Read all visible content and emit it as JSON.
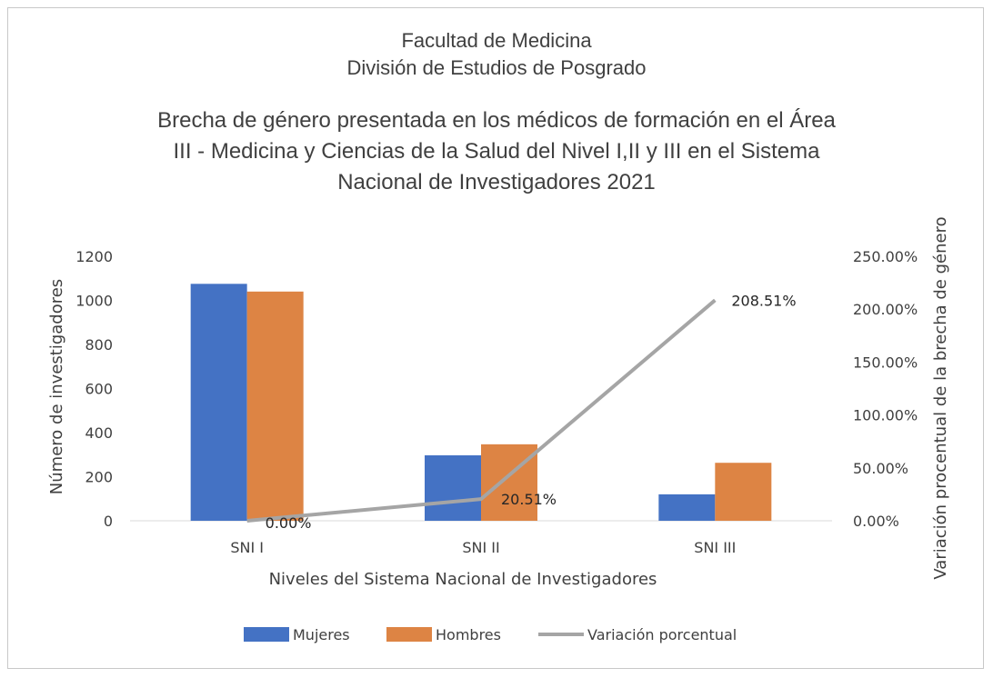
{
  "header": {
    "line1": "Facultad de Medicina",
    "line2": "División de Estudios de Posgrado"
  },
  "chart_data": {
    "type": "bar",
    "title_lines": [
      "Brecha de género presentada en los médicos de formación en el Área",
      "III - Medicina y Ciencias de la Salud del Nivel I,II y III en el Sistema",
      "Nacional de Investigadores 2021"
    ],
    "categories": [
      "SNI I",
      "SNI II",
      "SNI III"
    ],
    "series": [
      {
        "name": "Mujeres",
        "kind": "bar",
        "axis": "left",
        "color": "#4472c4",
        "values": [
          1075,
          297,
          120
        ]
      },
      {
        "name": "Hombres",
        "kind": "bar",
        "axis": "left",
        "color": "#dd8444",
        "values": [
          1040,
          347,
          263
        ]
      },
      {
        "name": "Variación porcentual",
        "kind": "line",
        "axis": "right",
        "color": "#a5a5a5",
        "values": [
          0.0,
          20.51,
          208.51
        ],
        "data_labels": [
          "0.00%",
          "20.51%",
          "208.51%"
        ]
      }
    ],
    "xlabel": "Niveles del Sistema Nacional de Investigadores",
    "ylabel": "Número de investigadores",
    "y2label": "Variación procentual de la brecha de género",
    "ylim": [
      0,
      1200
    ],
    "yticks": [
      "0",
      "200",
      "400",
      "600",
      "800",
      "1000",
      "1200"
    ],
    "y2lim": [
      0,
      250
    ],
    "y2ticks": [
      "0.00%",
      "50.00%",
      "100.00%",
      "150.00%",
      "200.00%",
      "250.00%"
    ],
    "grid": false,
    "legend": "bottom"
  }
}
